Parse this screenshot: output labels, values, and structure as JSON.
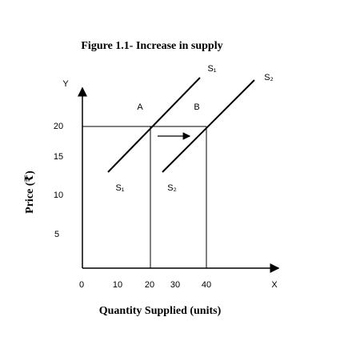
{
  "title": "Figure 1.1- Increase in supply",
  "y_axis": {
    "name": "Y",
    "label": "Price (₹)",
    "ticks": [
      "20",
      "15",
      "10",
      "5"
    ]
  },
  "x_axis": {
    "name": "X",
    "label": "Quantity Supplied (units)",
    "ticks": [
      "0",
      "10",
      "20",
      "30",
      "40"
    ]
  },
  "points": [
    "A",
    "B"
  ],
  "curves": {
    "s1_top": "S₁",
    "s2_top": "S₂",
    "s1_bottom": "S₁",
    "s2_bottom": "S₂"
  }
}
